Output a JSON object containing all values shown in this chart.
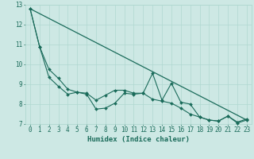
{
  "title": "",
  "xlabel": "Humidex (Indice chaleur)",
  "ylabel": "",
  "bg_color": "#cde8e4",
  "line_color": "#1a6b5a",
  "grid_color": "#b0d8d0",
  "xlim": [
    -0.5,
    23.5
  ],
  "ylim": [
    7,
    13
  ],
  "yticks": [
    7,
    8,
    9,
    10,
    11,
    12,
    13
  ],
  "xticks": [
    0,
    1,
    2,
    3,
    4,
    5,
    6,
    7,
    8,
    9,
    10,
    11,
    12,
    13,
    14,
    15,
    16,
    17,
    18,
    19,
    20,
    21,
    22,
    23
  ],
  "line1_x": [
    0,
    1,
    2,
    3,
    4,
    5,
    6,
    7,
    8,
    9,
    10,
    11,
    12,
    13,
    14,
    15,
    16,
    17,
    18,
    19,
    20,
    21,
    22,
    23
  ],
  "line1_y": [
    12.8,
    10.9,
    9.75,
    9.3,
    8.75,
    8.6,
    8.5,
    7.75,
    7.8,
    8.05,
    8.55,
    8.5,
    8.55,
    9.55,
    8.2,
    9.05,
    8.1,
    8.0,
    7.35,
    7.2,
    7.15,
    7.4,
    7.1,
    7.25
  ],
  "line2_x": [
    0,
    1,
    2,
    3,
    4,
    5,
    6,
    7,
    8,
    9,
    10,
    11,
    12,
    13,
    14,
    15,
    16,
    17,
    18,
    19,
    20,
    21,
    22,
    23
  ],
  "line2_y": [
    12.8,
    10.9,
    9.35,
    8.9,
    8.5,
    8.6,
    8.55,
    8.2,
    8.45,
    8.7,
    8.7,
    8.55,
    8.55,
    8.25,
    8.15,
    8.05,
    7.8,
    7.5,
    7.35,
    7.2,
    7.15,
    7.4,
    7.05,
    7.2
  ],
  "line3_x": [
    0,
    23
  ],
  "line3_y": [
    12.8,
    7.2
  ],
  "tick_fontsize": 5.5,
  "xlabel_fontsize": 6.5
}
